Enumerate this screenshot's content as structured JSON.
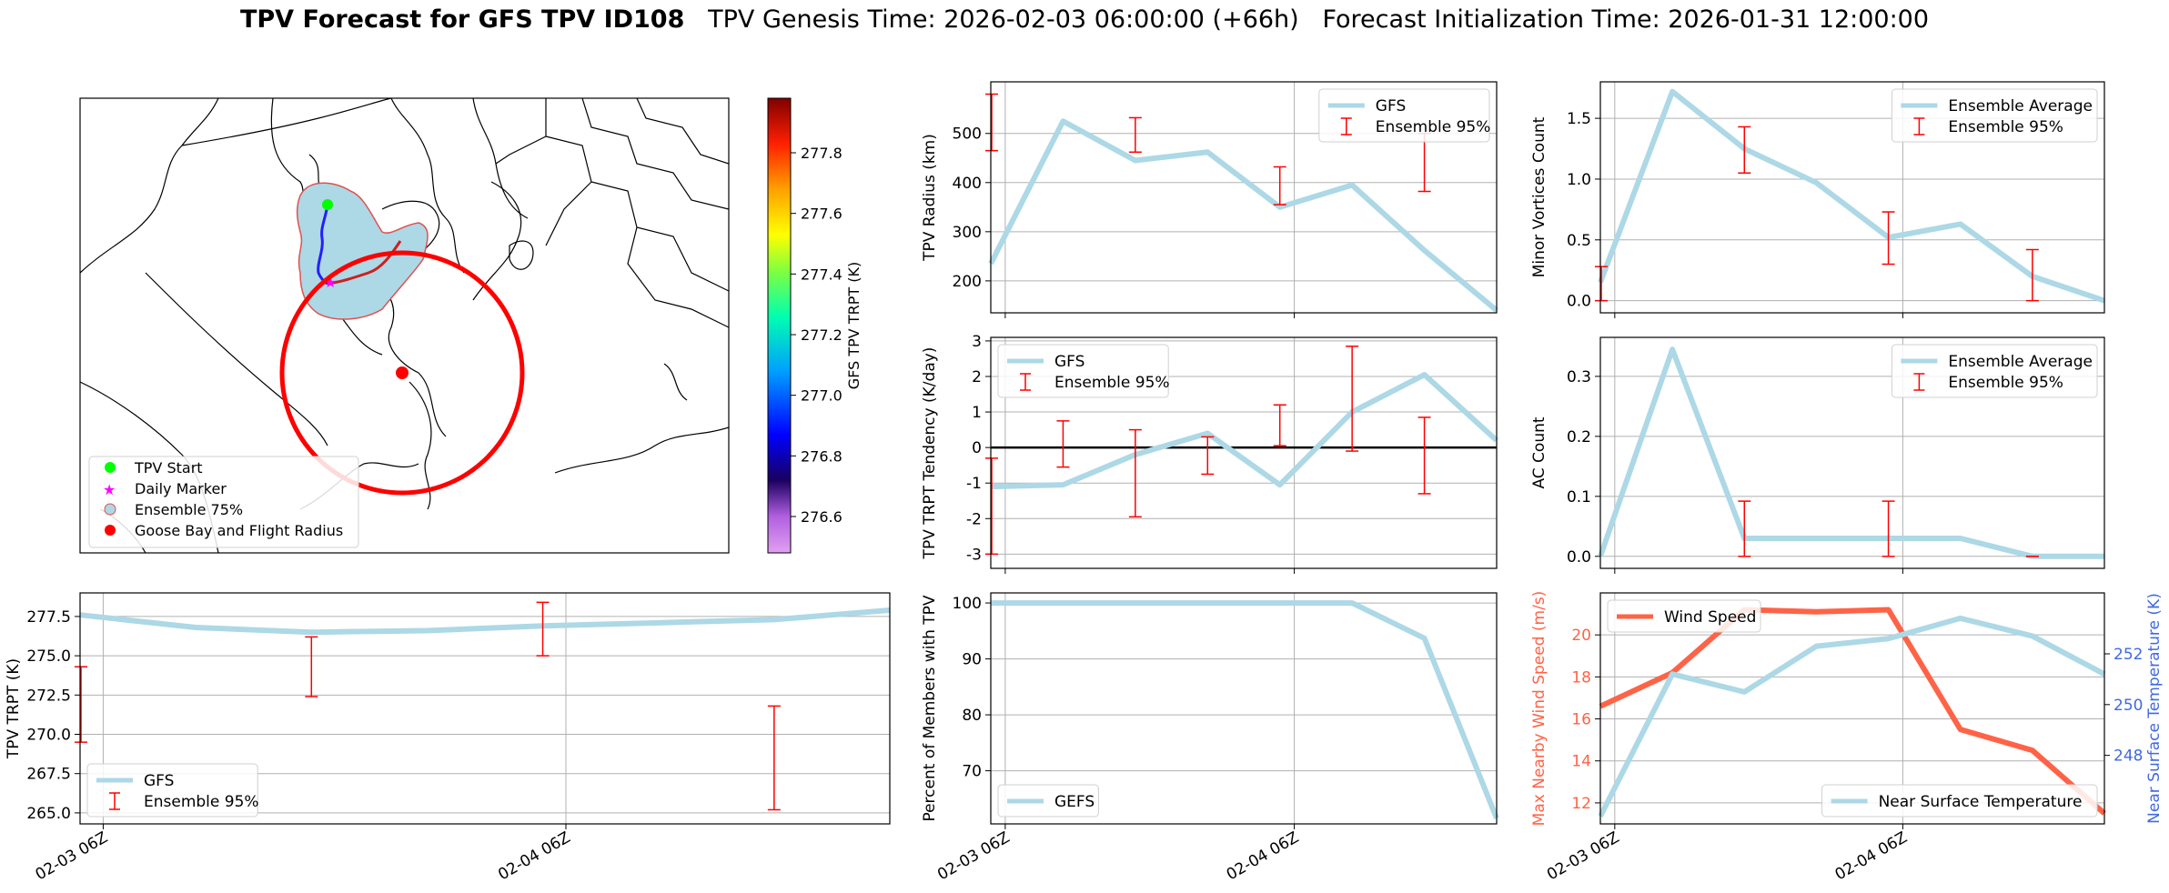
{
  "figure": {
    "title_bold": "TPV Forecast for GFS TPV ID108",
    "title_genesis": "TPV Genesis Time: 2026-02-03 06:00:00 (+66h)",
    "title_init": "Forecast Initialization Time: 2026-01-31 12:00:00"
  },
  "map": {
    "colorbar": {
      "label": "GFS TPV TRPT (K)",
      "ticks": [
        "277.8",
        "277.6",
        "277.4",
        "277.2",
        "277.0",
        "276.8",
        "276.6"
      ],
      "range": [
        276.48,
        277.98
      ]
    },
    "legend": [
      "TPV Start",
      "Daily Marker",
      "Ensemble 75%",
      "Goose Bay and Flight Radius"
    ],
    "colors": {
      "start": "#00ff00",
      "daily": "#ff00ff",
      "ensemble_fill": "#add8e6",
      "ensemble_edge": "#e05050",
      "goose": "#ff0000"
    }
  },
  "x_ticks": [
    "02-03 06Z",
    "02-04 06Z"
  ],
  "chart_data": [
    {
      "type": "line",
      "id": "radius",
      "ylabel": "TPV Radius (km)",
      "ylim": [
        135,
        605
      ],
      "yticks": [
        200,
        300,
        400,
        500
      ],
      "x": [
        0,
        1,
        2,
        3,
        4,
        5,
        6,
        7
      ],
      "series": [
        {
          "name": "GFS",
          "values": [
            235,
            525,
            445,
            462,
            350,
            395,
            262,
            140
          ]
        }
      ],
      "errorbars": {
        "name": "Ensemble 95%",
        "x": [
          -0.1,
          2,
          4,
          6
        ],
        "low": [
          465,
          462,
          355,
          382
        ],
        "high": [
          580,
          532,
          432,
          500
        ]
      },
      "legend": "upper right"
    },
    {
      "type": "line",
      "id": "minor",
      "ylabel": "Minor Vortices Count",
      "ylim": [
        -0.1,
        1.8
      ],
      "yticks": [
        0.0,
        0.5,
        1.0,
        1.5
      ],
      "x": [
        0,
        1,
        2,
        3,
        4,
        5,
        6,
        7
      ],
      "series": [
        {
          "name": "Ensemble Average",
          "values": [
            0.15,
            1.72,
            1.25,
            0.97,
            0.52,
            0.63,
            0.2,
            0.0
          ]
        }
      ],
      "errorbars": {
        "name": "Ensemble 95%",
        "x": [
          -0.1,
          2,
          4,
          6
        ],
        "low": [
          0.0,
          1.05,
          0.3,
          0.0
        ],
        "high": [
          0.28,
          1.43,
          0.73,
          0.42
        ]
      },
      "legend": "upper right"
    },
    {
      "type": "line",
      "id": "tendency",
      "ylabel": "TPV TRPT Tendency (K/day)",
      "ylim": [
        -3.4,
        3.1
      ],
      "yticks": [
        -3,
        -2,
        -1,
        0,
        1,
        2,
        3
      ],
      "x": [
        0,
        1,
        2,
        3,
        4,
        5,
        6,
        7
      ],
      "series": [
        {
          "name": "GFS",
          "values": [
            -1.1,
            -1.05,
            -0.2,
            0.4,
            -1.05,
            1.0,
            2.05,
            0.2
          ]
        }
      ],
      "errorbars": {
        "name": "Ensemble 95%",
        "x": [
          -0.1,
          1,
          2,
          3,
          4,
          5,
          6
        ],
        "low": [
          -3.0,
          -0.55,
          -1.95,
          -0.75,
          0.05,
          -0.1,
          -1.3
        ],
        "high": [
          -0.3,
          0.75,
          0.5,
          0.3,
          1.2,
          2.85,
          0.85
        ]
      },
      "zero_line": true,
      "legend": "upper left"
    },
    {
      "type": "line",
      "id": "ac",
      "ylabel": "AC Count",
      "ylim": [
        -0.02,
        0.365
      ],
      "yticks": [
        0.0,
        0.1,
        0.2,
        0.3
      ],
      "x": [
        0,
        1,
        2,
        3,
        4,
        5,
        6,
        7
      ],
      "series": [
        {
          "name": "Ensemble Average",
          "values": [
            0.0,
            0.345,
            0.03,
            0.03,
            0.03,
            0.03,
            0.0,
            0.0
          ]
        }
      ],
      "errorbars": {
        "name": "Ensemble 95%",
        "x": [
          2,
          4,
          6
        ],
        "low": [
          0.0,
          0.0,
          0.0
        ],
        "high": [
          0.092,
          0.092,
          0.0
        ]
      },
      "legend": "upper right"
    },
    {
      "type": "line",
      "id": "trpt",
      "ylabel": "TPV TRPT (K)",
      "ylim": [
        264.3,
        279.0
      ],
      "yticks": [
        265.0,
        267.5,
        270.0,
        272.5,
        275.0,
        277.5
      ],
      "x": [
        0,
        1,
        2,
        3,
        4,
        5,
        6,
        7
      ],
      "series": [
        {
          "name": "GFS",
          "values": [
            277.6,
            276.8,
            276.5,
            276.6,
            276.9,
            277.1,
            277.3,
            277.9
          ]
        }
      ],
      "errorbars": {
        "name": "Ensemble 95%",
        "x": [
          -0.1,
          2,
          4,
          6
        ],
        "low": [
          269.5,
          272.4,
          275.0,
          265.2
        ],
        "high": [
          274.3,
          276.2,
          278.4,
          271.8
        ]
      },
      "legend": "lower left"
    },
    {
      "type": "line",
      "id": "members",
      "ylabel": "Percent of Members with TPV",
      "ylim": [
        60.5,
        101.8
      ],
      "yticks": [
        70,
        80,
        90,
        100
      ],
      "x": [
        0,
        1,
        2,
        3,
        4,
        5,
        6,
        7
      ],
      "series": [
        {
          "name": "GEFS",
          "values": [
            100,
            100,
            100,
            100,
            100,
            100,
            93.7,
            61.5
          ]
        }
      ],
      "legend": "lower left"
    },
    {
      "type": "line",
      "id": "wind",
      "ylabel": "Max Nearby Wind Speed (m/s)",
      "ylabel_right": "Near Surface Temperature (K)",
      "ylim": [
        11.0,
        22.0
      ],
      "yticks": [
        12,
        14,
        16,
        18,
        20
      ],
      "ylim_right": [
        245.3,
        254.4
      ],
      "yticks_right": [
        248,
        250,
        252
      ],
      "x": [
        0,
        1,
        2,
        3,
        4,
        5,
        6,
        7
      ],
      "series": [
        {
          "name": "Wind Speed",
          "axis": "left",
          "values": [
            16.6,
            18.2,
            21.2,
            21.1,
            21.2,
            15.5,
            14.5,
            11.5
          ]
        },
        {
          "name": "Near Surface Temperature",
          "axis": "right",
          "values": [
            245.6,
            251.2,
            250.5,
            252.3,
            252.6,
            253.4,
            252.7,
            251.2
          ]
        }
      ],
      "legend": [
        "upper left",
        "lower right"
      ]
    }
  ]
}
